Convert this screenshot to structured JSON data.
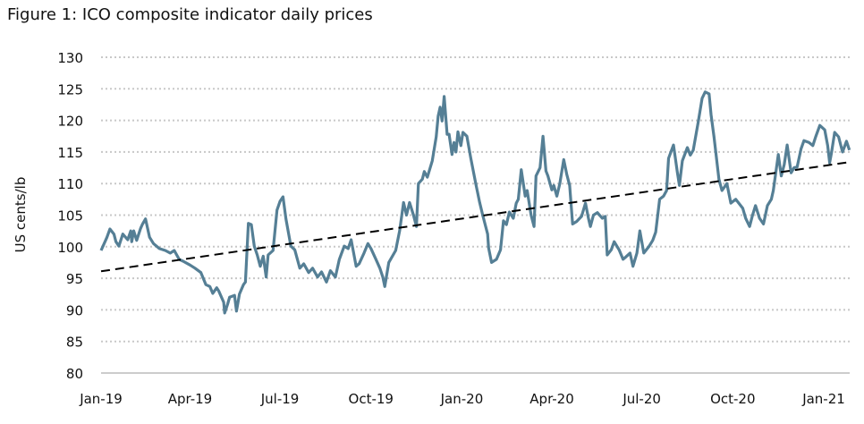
{
  "chart_data": {
    "type": "line",
    "title": "Figure 1: ICO composite indicator daily prices",
    "xlabel": "",
    "ylabel": "US cents/lb",
    "ylim": [
      80,
      130
    ],
    "yticks": [
      80,
      85,
      90,
      95,
      100,
      105,
      110,
      115,
      120,
      125,
      130
    ],
    "xlim": [
      "2019-01-01",
      "2021-01-27"
    ],
    "xticks": [
      {
        "date": "2019-01-01",
        "label": "Jan-19"
      },
      {
        "date": "2019-04-01",
        "label": "Apr-19"
      },
      {
        "date": "2019-07-01",
        "label": "Jul-19"
      },
      {
        "date": "2019-10-01",
        "label": "Oct-19"
      },
      {
        "date": "2020-01-01",
        "label": "Jan-20"
      },
      {
        "date": "2020-04-01",
        "label": "Apr-20"
      },
      {
        "date": "2020-07-01",
        "label": "Jul-20"
      },
      {
        "date": "2020-10-01",
        "label": "Oct-20"
      },
      {
        "date": "2021-01-01",
        "label": "Jan-21"
      }
    ],
    "grid": true,
    "colors": {
      "series": "#557f95",
      "trend": "#000000",
      "grid": "#c8c8c8"
    },
    "series": [
      {
        "style": "solid",
        "points": [
          [
            "2019-01-01",
            99.4
          ],
          [
            "2019-01-05",
            100.8
          ],
          [
            "2019-01-07",
            101.5
          ],
          [
            "2019-01-10",
            102.8
          ],
          [
            "2019-01-14",
            102
          ],
          [
            "2019-01-16",
            100.8
          ],
          [
            "2019-01-19",
            100.1
          ],
          [
            "2019-01-23",
            102
          ],
          [
            "2019-01-28",
            101.1
          ],
          [
            "2019-01-31",
            102.5
          ],
          [
            "2019-02-01",
            100.8
          ],
          [
            "2019-02-03",
            102.5
          ],
          [
            "2019-02-06",
            101
          ],
          [
            "2019-02-10",
            102.9
          ],
          [
            "2019-02-12",
            103.6
          ],
          [
            "2019-02-15",
            104.4
          ],
          [
            "2019-02-19",
            101.5
          ],
          [
            "2019-02-23",
            100.5
          ],
          [
            "2019-03-01",
            99.7
          ],
          [
            "2019-03-07",
            99.4
          ],
          [
            "2019-03-12",
            99
          ],
          [
            "2019-03-16",
            99.4
          ],
          [
            "2019-03-21",
            98
          ],
          [
            "2019-03-25",
            97.7
          ],
          [
            "2019-04-01",
            97.1
          ],
          [
            "2019-04-06",
            96.6
          ],
          [
            "2019-04-12",
            95.9
          ],
          [
            "2019-04-17",
            94
          ],
          [
            "2019-04-21",
            93.7
          ],
          [
            "2019-04-24",
            92.6
          ],
          [
            "2019-04-28",
            93.5
          ],
          [
            "2019-04-30",
            93
          ],
          [
            "2019-05-05",
            91.2
          ],
          [
            "2019-05-06",
            89.5
          ],
          [
            "2019-05-09",
            90.9
          ],
          [
            "2019-05-11",
            92
          ],
          [
            "2019-05-16",
            92.3
          ],
          [
            "2019-05-18",
            89.8
          ],
          [
            "2019-05-21",
            92.5
          ],
          [
            "2019-05-25",
            94
          ],
          [
            "2019-05-27",
            94.4
          ],
          [
            "2019-05-30",
            103.7
          ],
          [
            "2019-06-02",
            103.5
          ],
          [
            "2019-06-05",
            100.1
          ],
          [
            "2019-06-08",
            98.7
          ],
          [
            "2019-06-11",
            96.9
          ],
          [
            "2019-06-14",
            98.5
          ],
          [
            "2019-06-17",
            95.2
          ],
          [
            "2019-06-19",
            98.7
          ],
          [
            "2019-06-24",
            99.4
          ],
          [
            "2019-06-28",
            105.8
          ],
          [
            "2019-07-01",
            107.2
          ],
          [
            "2019-07-04",
            107.9
          ],
          [
            "2019-07-07",
            104.4
          ],
          [
            "2019-07-12",
            100.1
          ],
          [
            "2019-07-16",
            99.5
          ],
          [
            "2019-07-21",
            96.6
          ],
          [
            "2019-07-25",
            97.3
          ],
          [
            "2019-07-30",
            95.9
          ],
          [
            "2019-08-03",
            96.6
          ],
          [
            "2019-08-08",
            95.2
          ],
          [
            "2019-08-12",
            96
          ],
          [
            "2019-08-17",
            94.4
          ],
          [
            "2019-08-21",
            96.2
          ],
          [
            "2019-08-26",
            95.2
          ],
          [
            "2019-08-30",
            98
          ],
          [
            "2019-09-04",
            100.1
          ],
          [
            "2019-09-08",
            99.7
          ],
          [
            "2019-09-11",
            101.1
          ],
          [
            "2019-09-16",
            96.9
          ],
          [
            "2019-09-19",
            97.3
          ],
          [
            "2019-09-24",
            99
          ],
          [
            "2019-09-28",
            100.5
          ],
          [
            "2019-10-01",
            99.7
          ],
          [
            "2019-10-06",
            98
          ],
          [
            "2019-10-10",
            96.6
          ],
          [
            "2019-10-13",
            95.2
          ],
          [
            "2019-10-15",
            93.7
          ],
          [
            "2019-10-19",
            97.5
          ],
          [
            "2019-10-26",
            99.4
          ],
          [
            "2019-10-30",
            102.5
          ],
          [
            "2019-11-03",
            107
          ],
          [
            "2019-11-06",
            105
          ],
          [
            "2019-11-09",
            107
          ],
          [
            "2019-11-13",
            105
          ],
          [
            "2019-11-16",
            103.2
          ],
          [
            "2019-11-18",
            110
          ],
          [
            "2019-11-22",
            110.7
          ],
          [
            "2019-11-24",
            111.9
          ],
          [
            "2019-11-27",
            111
          ],
          [
            "2019-12-02",
            113.6
          ],
          [
            "2019-12-06",
            117.4
          ],
          [
            "2019-12-08",
            120.7
          ],
          [
            "2019-12-10",
            122.1
          ],
          [
            "2019-12-12",
            119.9
          ],
          [
            "2019-12-14",
            123.8
          ],
          [
            "2019-12-17",
            117.8
          ],
          [
            "2019-12-19",
            117.8
          ],
          [
            "2019-12-22",
            114.6
          ],
          [
            "2019-12-24",
            116.5
          ],
          [
            "2019-12-26",
            115
          ],
          [
            "2019-12-28",
            118.2
          ],
          [
            "2019-12-31",
            116
          ],
          [
            "2020-01-02",
            118.1
          ],
          [
            "2020-01-06",
            117.5
          ],
          [
            "2020-01-10",
            114
          ],
          [
            "2020-01-15",
            110
          ],
          [
            "2020-01-19",
            107
          ],
          [
            "2020-01-22",
            105
          ],
          [
            "2020-01-27",
            102
          ],
          [
            "2020-01-28",
            99.8
          ],
          [
            "2020-01-31",
            97.5
          ],
          [
            "2020-02-05",
            98
          ],
          [
            "2020-02-09",
            99.5
          ],
          [
            "2020-02-12",
            104.1
          ],
          [
            "2020-02-15",
            103.5
          ],
          [
            "2020-02-18",
            105.5
          ],
          [
            "2020-02-22",
            104.5
          ],
          [
            "2020-02-25",
            106.9
          ],
          [
            "2020-02-27",
            107.5
          ],
          [
            "2020-03-01",
            112.2
          ],
          [
            "2020-03-05",
            108
          ],
          [
            "2020-03-07",
            108.9
          ],
          [
            "2020-03-11",
            105
          ],
          [
            "2020-03-14",
            103.2
          ],
          [
            "2020-03-16",
            111.2
          ],
          [
            "2020-03-20",
            112.5
          ],
          [
            "2020-03-23",
            117.5
          ],
          [
            "2020-03-26",
            112
          ],
          [
            "2020-03-28",
            111.2
          ],
          [
            "2020-04-01",
            109
          ],
          [
            "2020-04-03",
            109.7
          ],
          [
            "2020-04-06",
            108
          ],
          [
            "2020-04-09",
            110
          ],
          [
            "2020-04-13",
            113.8
          ],
          [
            "2020-04-16",
            111.5
          ],
          [
            "2020-04-19",
            109.7
          ],
          [
            "2020-04-22",
            103.6
          ],
          [
            "2020-04-26",
            104
          ],
          [
            "2020-05-01",
            104.8
          ],
          [
            "2020-05-05",
            106.9
          ],
          [
            "2020-05-08",
            104.5
          ],
          [
            "2020-05-10",
            103.2
          ],
          [
            "2020-05-13",
            105
          ],
          [
            "2020-05-17",
            105.4
          ],
          [
            "2020-05-22",
            104.5
          ],
          [
            "2020-05-25",
            104.8
          ],
          [
            "2020-05-27",
            98.7
          ],
          [
            "2020-05-31",
            99.5
          ],
          [
            "2020-06-03",
            100.8
          ],
          [
            "2020-06-08",
            99.5
          ],
          [
            "2020-06-12",
            98
          ],
          [
            "2020-06-15",
            98.4
          ],
          [
            "2020-06-19",
            99
          ],
          [
            "2020-06-22",
            96.9
          ],
          [
            "2020-06-26",
            99
          ],
          [
            "2020-06-29",
            102.5
          ],
          [
            "2020-07-03",
            99
          ],
          [
            "2020-07-08",
            100
          ],
          [
            "2020-07-12",
            101
          ],
          [
            "2020-07-15",
            102.3
          ],
          [
            "2020-07-19",
            107.5
          ],
          [
            "2020-07-23",
            108
          ],
          [
            "2020-07-26",
            108.9
          ],
          [
            "2020-07-28",
            114
          ],
          [
            "2020-08-02",
            116.1
          ],
          [
            "2020-08-06",
            111.7
          ],
          [
            "2020-08-08",
            109.7
          ],
          [
            "2020-08-11",
            113.6
          ],
          [
            "2020-08-16",
            115.7
          ],
          [
            "2020-08-19",
            114.5
          ],
          [
            "2020-08-22",
            115.3
          ],
          [
            "2020-08-27",
            119.7
          ],
          [
            "2020-08-31",
            123.5
          ],
          [
            "2020-09-03",
            124.5
          ],
          [
            "2020-09-07",
            124.2
          ],
          [
            "2020-09-09",
            120.9
          ],
          [
            "2020-09-12",
            117.4
          ],
          [
            "2020-09-17",
            110.7
          ],
          [
            "2020-09-20",
            108.9
          ],
          [
            "2020-09-25",
            110
          ],
          [
            "2020-09-29",
            106.9
          ],
          [
            "2020-10-04",
            107.5
          ],
          [
            "2020-10-11",
            106.1
          ],
          [
            "2020-10-14",
            104.5
          ],
          [
            "2020-10-18",
            103.2
          ],
          [
            "2020-10-21",
            105
          ],
          [
            "2020-10-24",
            106.5
          ],
          [
            "2020-10-28",
            104.5
          ],
          [
            "2020-11-01",
            103.6
          ],
          [
            "2020-11-05",
            106.5
          ],
          [
            "2020-11-09",
            107.5
          ],
          [
            "2020-11-11",
            108.9
          ],
          [
            "2020-11-16",
            114.6
          ],
          [
            "2020-11-19",
            111.2
          ],
          [
            "2020-11-22",
            113
          ],
          [
            "2020-11-25",
            116.1
          ],
          [
            "2020-11-29",
            111.7
          ],
          [
            "2020-12-02",
            112.5
          ],
          [
            "2020-12-05",
            112.6
          ],
          [
            "2020-12-09",
            115.5
          ],
          [
            "2020-12-12",
            116.8
          ],
          [
            "2020-12-17",
            116.5
          ],
          [
            "2020-12-21",
            116
          ],
          [
            "2020-12-24",
            117.5
          ],
          [
            "2020-12-28",
            119.2
          ],
          [
            "2021-01-02",
            118.5
          ],
          [
            "2021-01-05",
            116
          ],
          [
            "2021-01-07",
            113.3
          ],
          [
            "2021-01-09",
            115
          ],
          [
            "2021-01-12",
            118.1
          ],
          [
            "2021-01-16",
            117.4
          ],
          [
            "2021-01-20",
            115
          ],
          [
            "2021-01-24",
            116.7
          ],
          [
            "2021-01-27",
            115.3
          ]
        ]
      },
      {
        "style": "dashed",
        "points": [
          [
            "2019-01-01",
            96.1
          ],
          [
            "2021-01-27",
            113.4
          ]
        ]
      }
    ]
  }
}
